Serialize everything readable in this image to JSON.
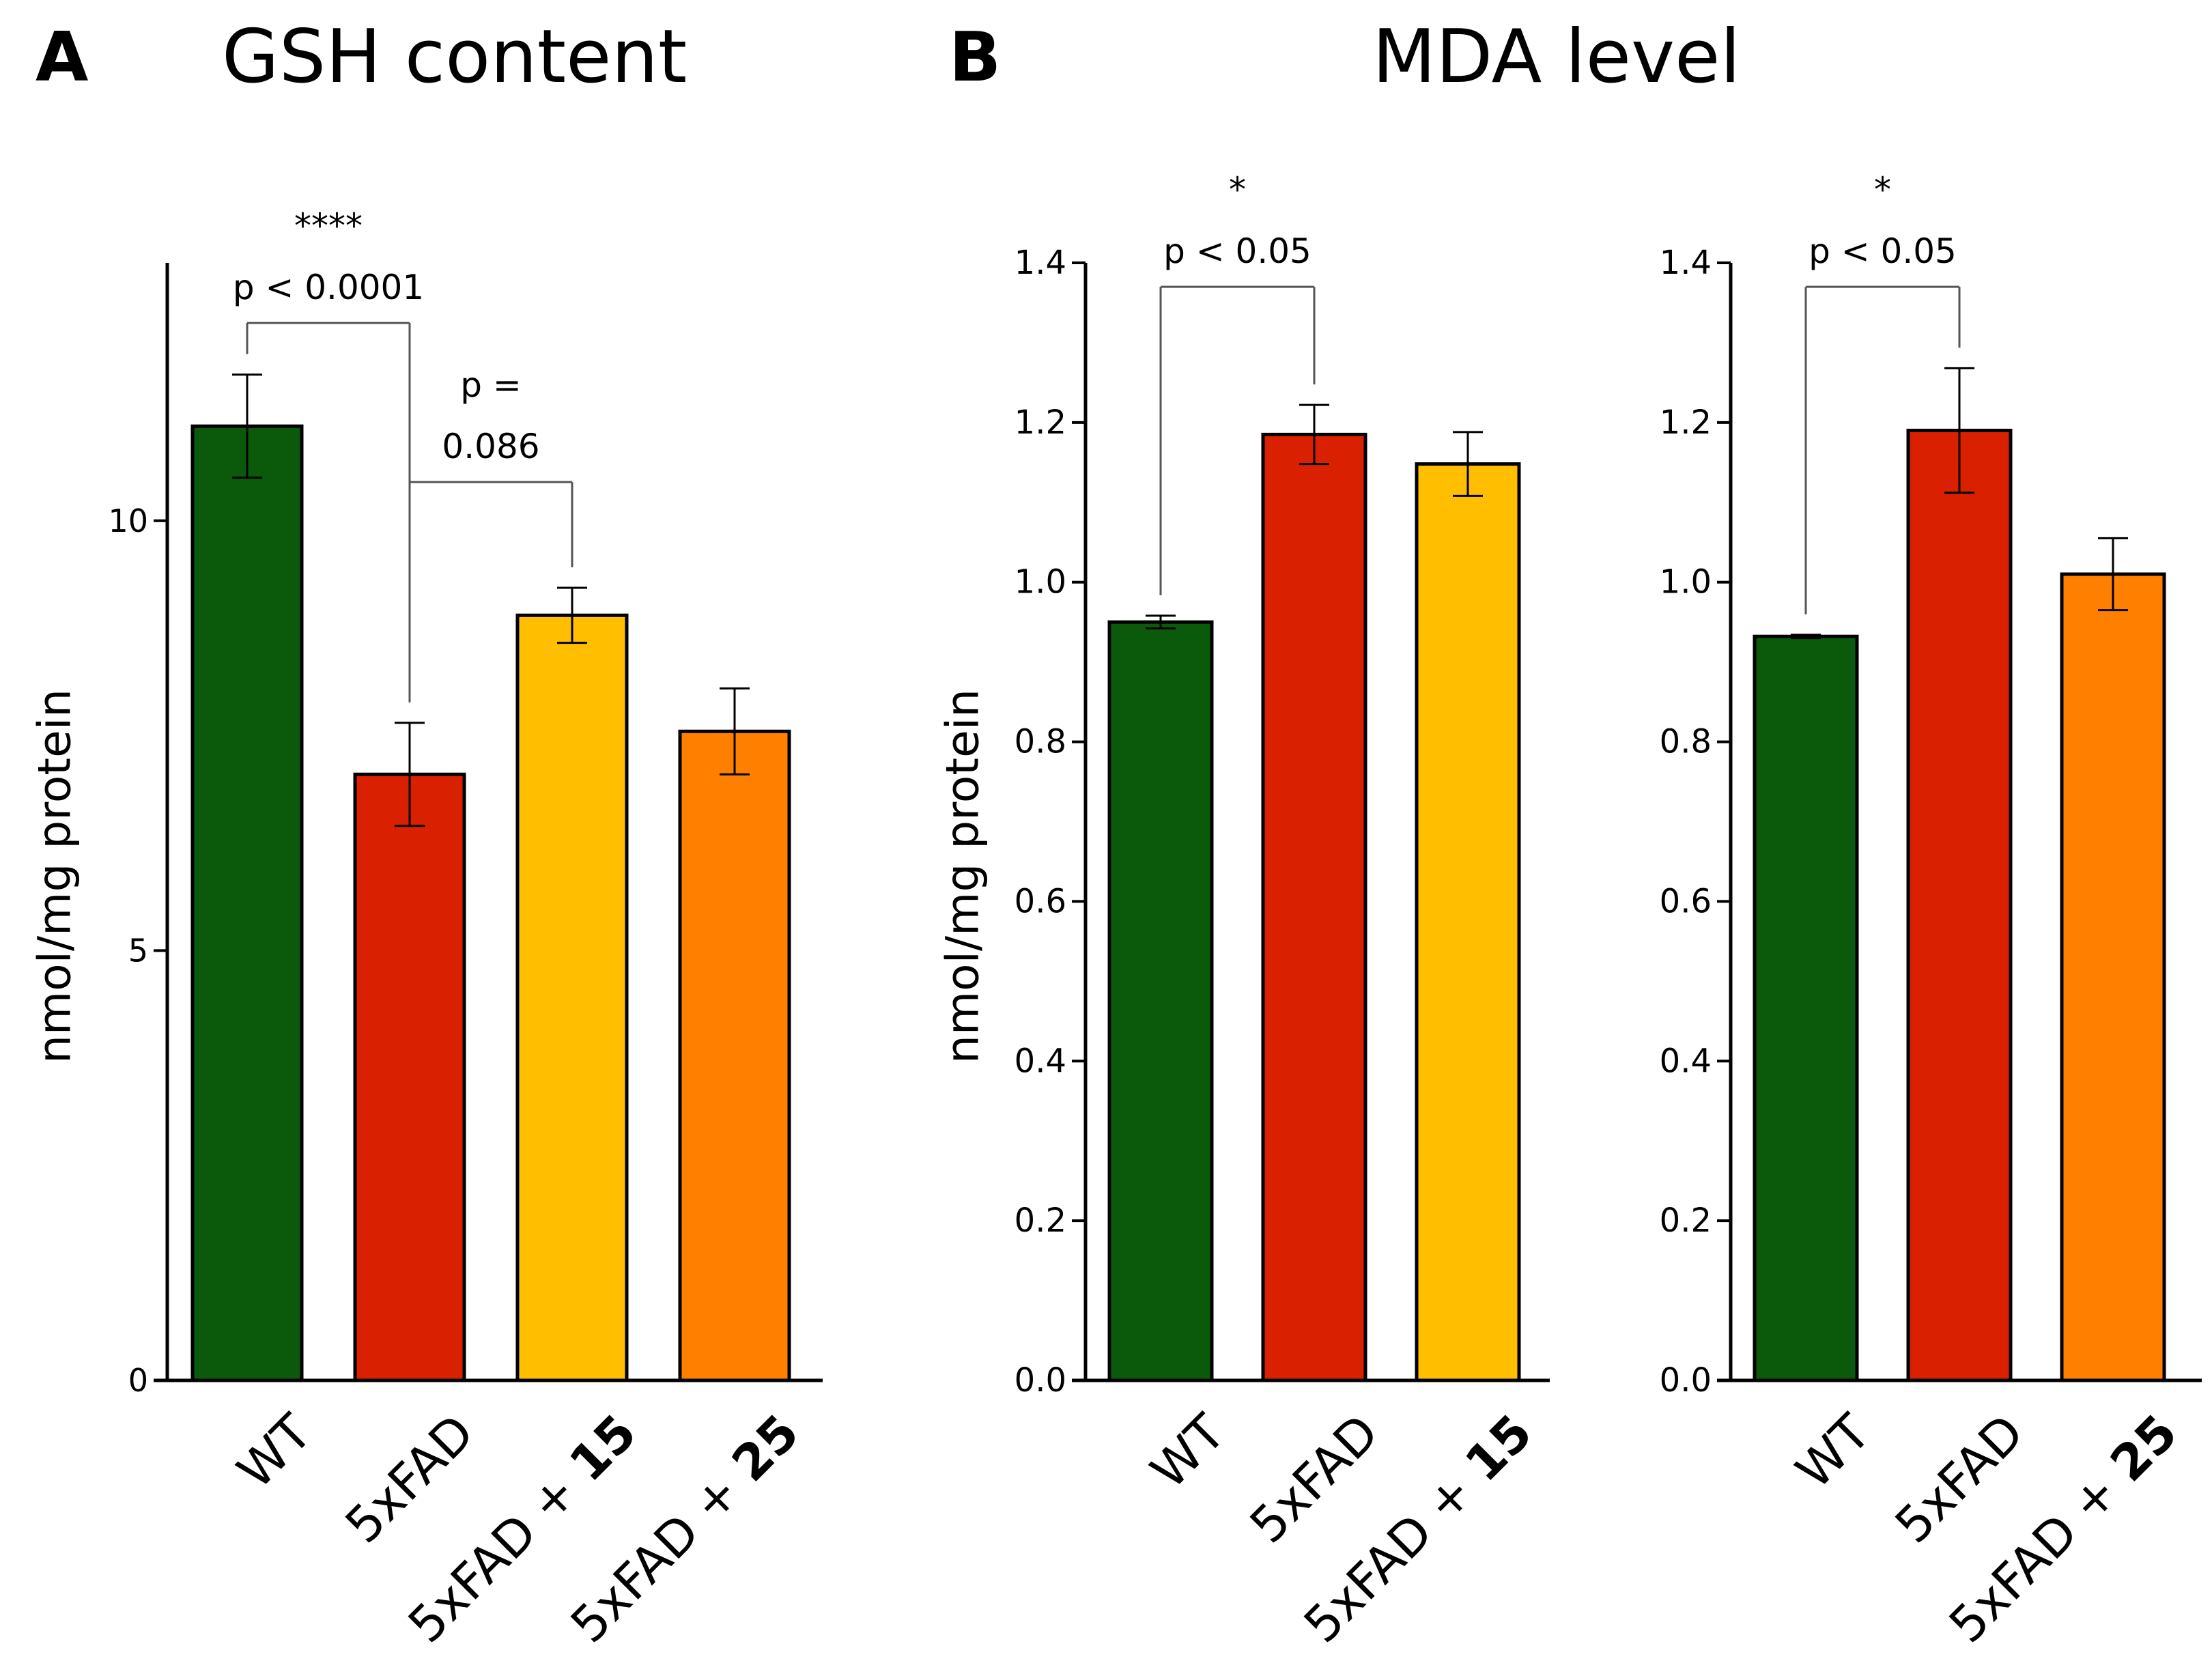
{
  "panels": {
    "a": {
      "letter": "A",
      "title": "GSH content"
    },
    "b": {
      "letter": "B",
      "title": "MDA level"
    }
  },
  "colors": {
    "wt": "#0b5a0b",
    "fad": "#d92000",
    "fad15": "#ffbe00",
    "fad25": "#ff8000"
  },
  "chart_data": [
    {
      "type": "bar",
      "title": "GSH content",
      "xlabel": "",
      "ylabel": "nmol/mg protein",
      "ylim": [
        0,
        13
      ],
      "yticks": [
        0,
        5,
        10
      ],
      "ytick_labels": [
        "0",
        "5",
        "10"
      ],
      "categories": [
        {
          "pre": "WT",
          "bold": ""
        },
        {
          "pre": "5xFAD",
          "bold": ""
        },
        {
          "pre": "5xFAD + ",
          "bold": "15"
        },
        {
          "pre": "5xFAD + ",
          "bold": "25"
        }
      ],
      "values": [
        11.1,
        7.05,
        8.9,
        7.55
      ],
      "errors": [
        0.6,
        0.6,
        0.32,
        0.5
      ],
      "bar_colors": [
        "wt",
        "fad",
        "fad15",
        "fad25"
      ],
      "comparisons": [
        {
          "from": 0,
          "to": 1,
          "bracket_y": 12.3,
          "lines": [
            "****",
            "p < 0.0001"
          ]
        },
        {
          "from": 1,
          "to": 2,
          "bracket_y": 10.45,
          "lines": [
            "p =",
            "0.086"
          ]
        }
      ]
    },
    {
      "type": "bar",
      "title": "MDA level",
      "xlabel": "",
      "ylabel": "nmol/mg protein",
      "ylim": [
        0,
        1.4
      ],
      "yticks": [
        0,
        0.2,
        0.4,
        0.6,
        0.8,
        1.0,
        1.2,
        1.4
      ],
      "ytick_labels": [
        "0.0",
        "0.2",
        "0.4",
        "0.6",
        "0.8",
        "1.0",
        "1.2",
        "1.4"
      ],
      "categories": [
        {
          "pre": "WT",
          "bold": ""
        },
        {
          "pre": "5xFAD",
          "bold": ""
        },
        {
          "pre": "5xFAD + ",
          "bold": "15"
        }
      ],
      "values": [
        0.95,
        1.185,
        1.148
      ],
      "errors": [
        0.008,
        0.037,
        0.04
      ],
      "bar_colors": [
        "wt",
        "fad",
        "fad15"
      ],
      "comparisons": [
        {
          "from": 0,
          "to": 1,
          "bracket_y": 1.37,
          "lines": [
            "*",
            "p < 0.05"
          ]
        }
      ]
    },
    {
      "type": "bar",
      "title": "",
      "xlabel": "",
      "ylabel": "",
      "ylim": [
        0,
        1.4
      ],
      "yticks": [
        0,
        0.2,
        0.4,
        0.6,
        0.8,
        1.0,
        1.2,
        1.4
      ],
      "ytick_labels": [
        "0.0",
        "0.2",
        "0.4",
        "0.6",
        "0.8",
        "1.0",
        "1.2",
        "1.4"
      ],
      "categories": [
        {
          "pre": "WT",
          "bold": ""
        },
        {
          "pre": "5xFAD",
          "bold": ""
        },
        {
          "pre": "5xFAD + ",
          "bold": "25"
        }
      ],
      "values": [
        0.932,
        1.19,
        1.01
      ],
      "errors": [
        0.002,
        0.078,
        0.045
      ],
      "bar_colors": [
        "wt",
        "fad",
        "fad25"
      ],
      "comparisons": [
        {
          "from": 0,
          "to": 1,
          "bracket_y": 1.37,
          "lines": [
            "*",
            "p < 0.05"
          ]
        }
      ]
    }
  ]
}
